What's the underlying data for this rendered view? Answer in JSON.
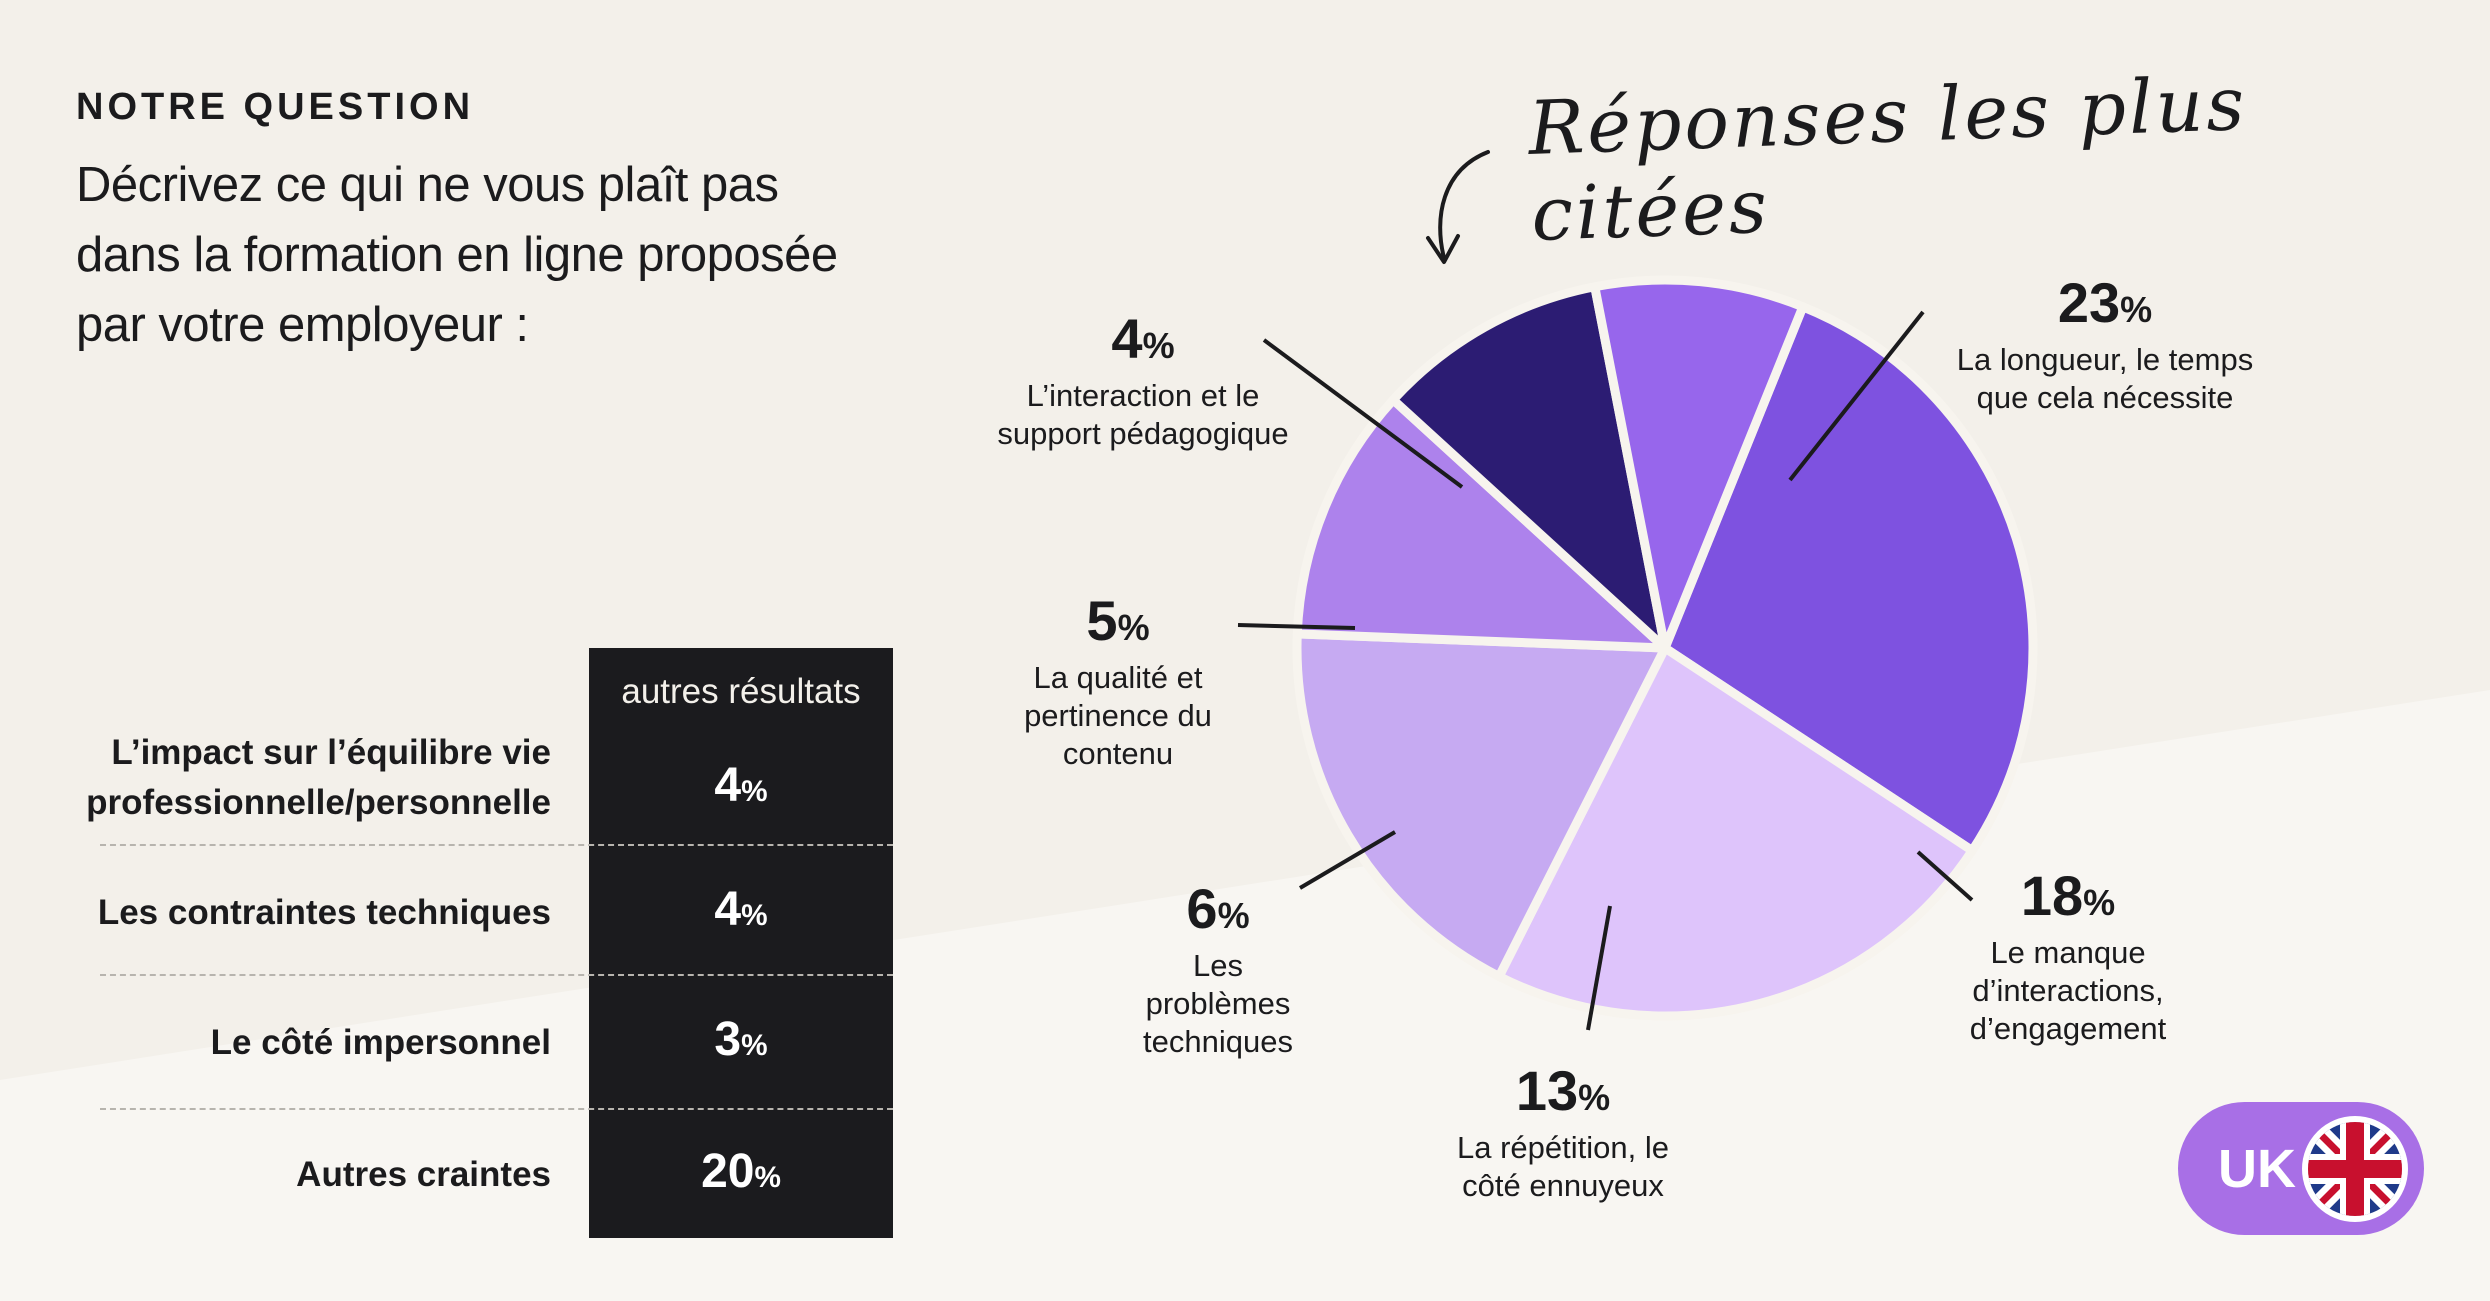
{
  "header": {
    "eyebrow": "NOTRE QUESTION",
    "question_lines": [
      "Décrivez ce qui ne vous plaît pas",
      "dans la formation en ligne proposée",
      "par votre employeur :"
    ]
  },
  "handwritten_title": "Réponses les plus citées",
  "other_results": {
    "header": "autres résultats",
    "rows": [
      {
        "label_lines": [
          "L’impact sur l’équilibre vie",
          "professionnelle/personnelle"
        ],
        "value": "4",
        "unit": "%"
      },
      {
        "label_lines": [
          "Les contraintes techniques"
        ],
        "value": "4",
        "unit": "%"
      },
      {
        "label_lines": [
          "Le côté impersonnel"
        ],
        "value": "3",
        "unit": "%"
      },
      {
        "label_lines": [
          "Autres craintes"
        ],
        "value": "20",
        "unit": "%"
      }
    ]
  },
  "chart_data": {
    "type": "pie",
    "unit": "%",
    "slices": [
      {
        "value": 23,
        "label_lines": [
          "La longueur, le temps",
          "que cela nécessite"
        ],
        "color": "#7e52e0"
      },
      {
        "value": 18,
        "label_lines": [
          "Le manque",
          "d’interactions,",
          "d’engagement"
        ],
        "color": "#dec4fb"
      },
      {
        "value": 13,
        "label_lines": [
          "La répétition, le",
          "côté ennuyeux"
        ],
        "color": "#c6aaf2"
      },
      {
        "value": 6,
        "label_lines": [
          "Les",
          "problèmes",
          "techniques"
        ],
        "color": "#ad82ec"
      },
      {
        "value": 5,
        "label_lines": [
          "La qualité et",
          "pertinence du",
          "contenu"
        ],
        "color": "#2c1c73"
      },
      {
        "value": 4,
        "label_lines": [
          "L’interaction et le",
          "support pédagogique"
        ],
        "color": "#9766ec"
      }
    ]
  },
  "badge": {
    "text": "UK",
    "flag_icon": "uk-flag-icon"
  },
  "colors": {
    "background": "#f3f0ea",
    "table_bg": "#1b1b1e",
    "badge": "#a86fe6"
  }
}
